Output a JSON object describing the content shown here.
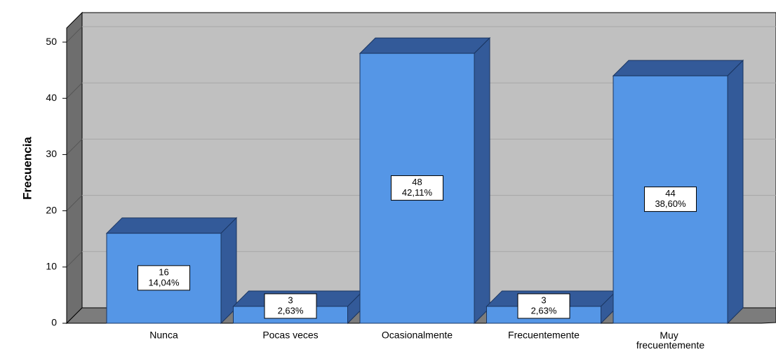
{
  "chart_data": {
    "type": "bar3d",
    "y_label": "Frecuencia",
    "categories": [
      "Nunca",
      "Pocas veces",
      "Ocasionalmente",
      "Frecuentemente",
      "Muy frecuentemente"
    ],
    "values": [
      16,
      3,
      48,
      3,
      44
    ],
    "percent_labels": [
      "14,04%",
      "2,63%",
      "42,11%",
      "2,63%",
      "38,60%"
    ],
    "color": "#5596e6",
    "side_color": "#335a99",
    "ylim": [
      0,
      52.5
    ],
    "yticks": [
      0,
      10,
      20,
      30,
      40,
      50
    ],
    "grid": true
  }
}
